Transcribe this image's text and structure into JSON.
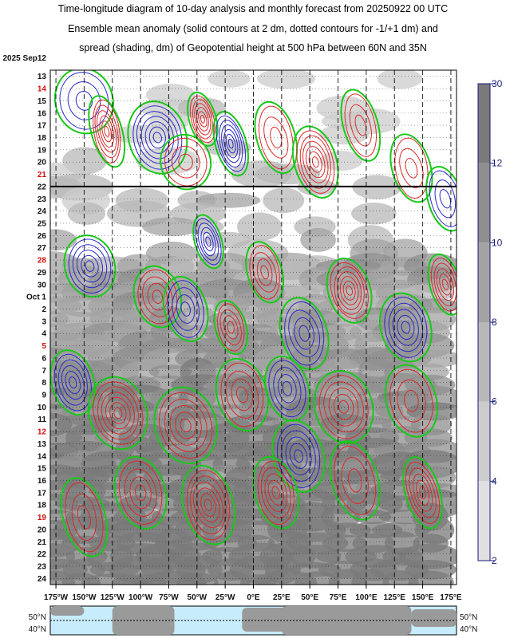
{
  "title": {
    "line1": "Time-longitude diagram of 10-day analysis and monthly forecast from 20250922 00 UTC",
    "line2": "Ensemble mean anomaly (solid contours at 2 dm, dotted contours for -1/+1 dm) and",
    "line3": "spread (shading, dm) of Geopotential height at 500 hPa between 60N and 35N"
  },
  "chart_data": {
    "type": "heatmap",
    "y_axis": {
      "year_label": "2025 Sep12",
      "month_label": "Oct  1",
      "labels": [
        "13",
        "14",
        "15",
        "16",
        "17",
        "18",
        "19",
        "20",
        "21",
        "22",
        "23",
        "24",
        "25",
        "26",
        "27",
        "28",
        "29",
        "30",
        "Oct  1",
        "2",
        "3",
        "4",
        "5",
        "6",
        "7",
        "8",
        "9",
        "10",
        "11",
        "12",
        "13",
        "14",
        "15",
        "16",
        "17",
        "18",
        "19",
        "20",
        "21",
        "22",
        "23",
        "24"
      ],
      "red_labels": [
        "14",
        "21",
        "28",
        "5",
        "12",
        "19"
      ]
    },
    "x_axis": {
      "tick_labels": [
        "175°W",
        "150°W",
        "125°W",
        "100°W",
        "75°W",
        "50°W",
        "25°W",
        "0°E",
        "25°E",
        "50°E",
        "75°E",
        "100°E",
        "125°E",
        "150°E",
        "175°E"
      ],
      "tick_values": [
        -175,
        -150,
        -125,
        -100,
        -75,
        -50,
        -25,
        0,
        25,
        50,
        75,
        100,
        125,
        150,
        175
      ],
      "range": [
        -180,
        180
      ]
    },
    "analysis_forecast_boundary": "22",
    "colorbar": {
      "ticks": [
        "30",
        "12",
        "10",
        "8",
        "6",
        "4",
        "2"
      ],
      "values": [
        30,
        12,
        10,
        8,
        6,
        4,
        2
      ],
      "colors": [
        "#7a7a7a",
        "#8f8f8f",
        "#a3a3a3",
        "#b8b8b8",
        "#cccccc",
        "#e0e0e0"
      ]
    },
    "contour_colors": {
      "positive": "#dd2a2a",
      "negative": "#2a2acc",
      "zero": "#19c919"
    },
    "map_labels": {
      "left": [
        "50°N",
        "40°N"
      ],
      "right": [
        "50°N",
        "40°N"
      ]
    }
  }
}
